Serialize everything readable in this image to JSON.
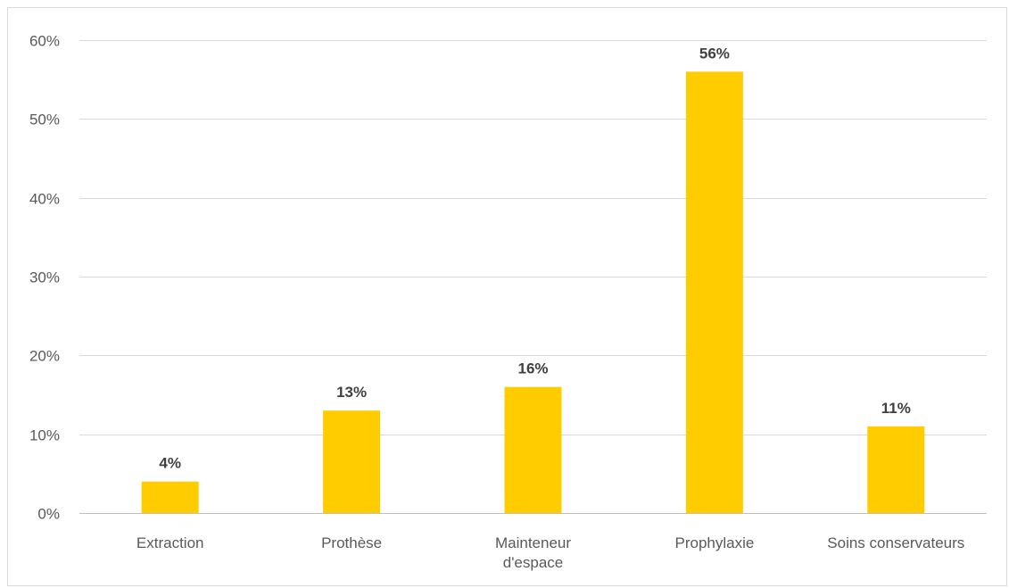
{
  "chart_data": {
    "type": "bar",
    "title": "",
    "xlabel": "",
    "ylabel": "",
    "categories": [
      "Extraction",
      "Prothèse",
      "Mainteneur d'espace",
      "Prophylaxie",
      "Soins conservateurs"
    ],
    "category_lines": [
      [
        "Extraction"
      ],
      [
        "Prothèse"
      ],
      [
        "Mainteneur",
        "d'espace"
      ],
      [
        "Prophylaxie"
      ],
      [
        "Soins conservateurs"
      ]
    ],
    "values": [
      4,
      13,
      16,
      56,
      11
    ],
    "data_labels": [
      "4%",
      "13%",
      "16%",
      "56%",
      "11%"
    ],
    "ylim": [
      0,
      60
    ],
    "yticks": [
      0,
      10,
      20,
      30,
      40,
      50,
      60
    ],
    "ytick_labels": [
      "0%",
      "10%",
      "20%",
      "30%",
      "40%",
      "50%",
      "60%"
    ],
    "grid": true,
    "legend": "none",
    "colors": {
      "bar": "#FFCC00",
      "grid": "#d9d9d9",
      "axis": "#bfbfbf",
      "tick_text": "#595959",
      "data_label_text": "#404040"
    }
  }
}
